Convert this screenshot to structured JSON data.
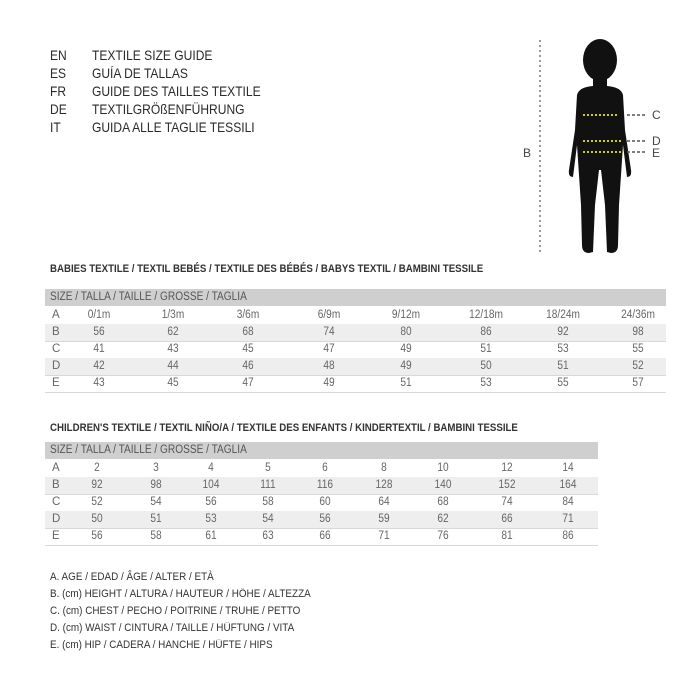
{
  "languages": [
    {
      "code": "EN",
      "text": "TEXTILE SIZE GUIDE"
    },
    {
      "code": "ES",
      "text": "GUÍA DE TALLAS"
    },
    {
      "code": "FR",
      "text": "GUIDE DES TAILLES TEXTILE"
    },
    {
      "code": "DE",
      "text": "TEXTILGRÖßENFÜHRUNG"
    },
    {
      "code": "IT",
      "text": "GUIDA ALLE TAGLIE TESSILI"
    }
  ],
  "figure": {
    "labels": {
      "b": "B",
      "c": "C",
      "d": "D",
      "e": "E"
    },
    "silhouette_color": "#111111",
    "marker_color": "#c8d400"
  },
  "babies": {
    "title": "BABIES TEXTILE / TEXTIL BEBÉS / TEXTILE DES BÉBÉS / BABYS TEXTIL  / BAMBINI TESSILE",
    "header": "SIZE / TALLA / TAILLE / GRÖSSE / TAGLIA",
    "rows": [
      {
        "label": "A",
        "values": [
          "0/1m",
          "1/3m",
          "3/6m",
          "6/9m",
          "9/12m",
          "12/18m",
          "18/24m",
          "24/36m"
        ]
      },
      {
        "label": "B",
        "values": [
          "56",
          "62",
          "68",
          "74",
          "80",
          "86",
          "92",
          "98"
        ]
      },
      {
        "label": "C",
        "values": [
          "41",
          "43",
          "45",
          "47",
          "49",
          "51",
          "53",
          "55"
        ]
      },
      {
        "label": "D",
        "values": [
          "42",
          "44",
          "46",
          "48",
          "49",
          "50",
          "51",
          "52"
        ]
      },
      {
        "label": "E",
        "values": [
          "43",
          "45",
          "47",
          "49",
          "51",
          "53",
          "55",
          "57"
        ]
      }
    ]
  },
  "children": {
    "title": "CHILDREN'S TEXTILE / TEXTIL NIÑO/A / TEXTILE DES ENFANTS / KINDERTEXTIL / BAMBINI TESSILE",
    "header": "SIZE / TALLA / TAILLE / GRÖSSE / TAGLIA",
    "rows": [
      {
        "label": "A",
        "values": [
          "2",
          "3",
          "4",
          "5",
          "6",
          "8",
          "10",
          "12",
          "14"
        ]
      },
      {
        "label": "B",
        "values": [
          "92",
          "98",
          "104",
          "111",
          "116",
          "128",
          "140",
          "152",
          "164"
        ]
      },
      {
        "label": "C",
        "values": [
          "52",
          "54",
          "56",
          "58",
          "60",
          "64",
          "68",
          "74",
          "84"
        ]
      },
      {
        "label": "D",
        "values": [
          "50",
          "51",
          "53",
          "54",
          "56",
          "59",
          "62",
          "66",
          "71"
        ]
      },
      {
        "label": "E",
        "values": [
          "56",
          "58",
          "61",
          "63",
          "66",
          "71",
          "76",
          "81",
          "86"
        ]
      }
    ]
  },
  "legend": [
    "A. AGE / EDAD / ÂGE / ALTER / ETÀ",
    "B. (cm) HEIGHT / ALTURA / HAUTEUR / HÖHE / ALTEZZA",
    "C. (cm) CHEST / PECHO / POITRINE / TRUHE / PETTO",
    "D. (cm) WAIST / CINTURA / TAILLE / HÜFTUNG / VITA",
    "E. (cm) HIP / CADERA / HANCHE / HÜFTE / HIPS"
  ]
}
